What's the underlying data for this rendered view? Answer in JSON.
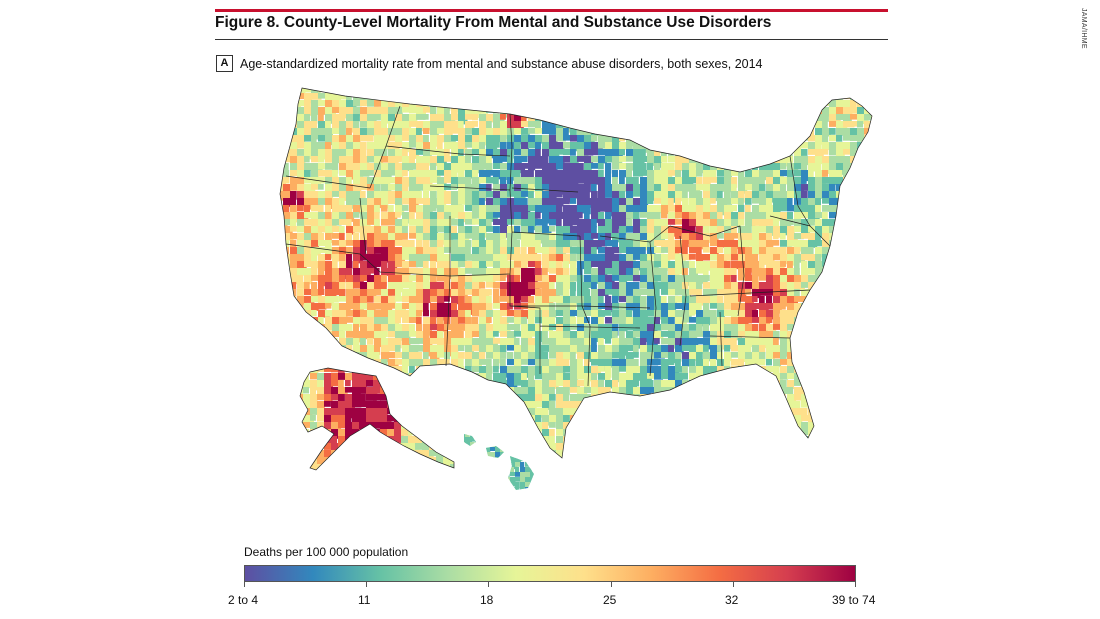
{
  "figure_title": "Figure 8. County-Level Mortality From Mental and Substance Use Disorders",
  "credit": "JAMA/IHME",
  "panel": {
    "label": "A",
    "caption": "Age-standardized mortality rate from mental and substance abuse disorders, both sexes, 2014"
  },
  "legend": {
    "title": "Deaths per 100 000 population",
    "ticks": [
      "2 to 4",
      "11",
      "18",
      "25",
      "32",
      "39 to 74"
    ],
    "colors": [
      "#5e4fa2",
      "#3288bd",
      "#66c2a5",
      "#abdda4",
      "#e6f598",
      "#fee08b",
      "#fdae61",
      "#f46d43",
      "#d53e4f",
      "#9e0142"
    ]
  },
  "map": {
    "regions": [
      "Contiguous United States",
      "Alaska",
      "Hawaii"
    ],
    "highlight_areas": [
      "Alaska",
      "Southwest",
      "Appalachia",
      "South Dakota",
      "Northern California"
    ]
  }
}
